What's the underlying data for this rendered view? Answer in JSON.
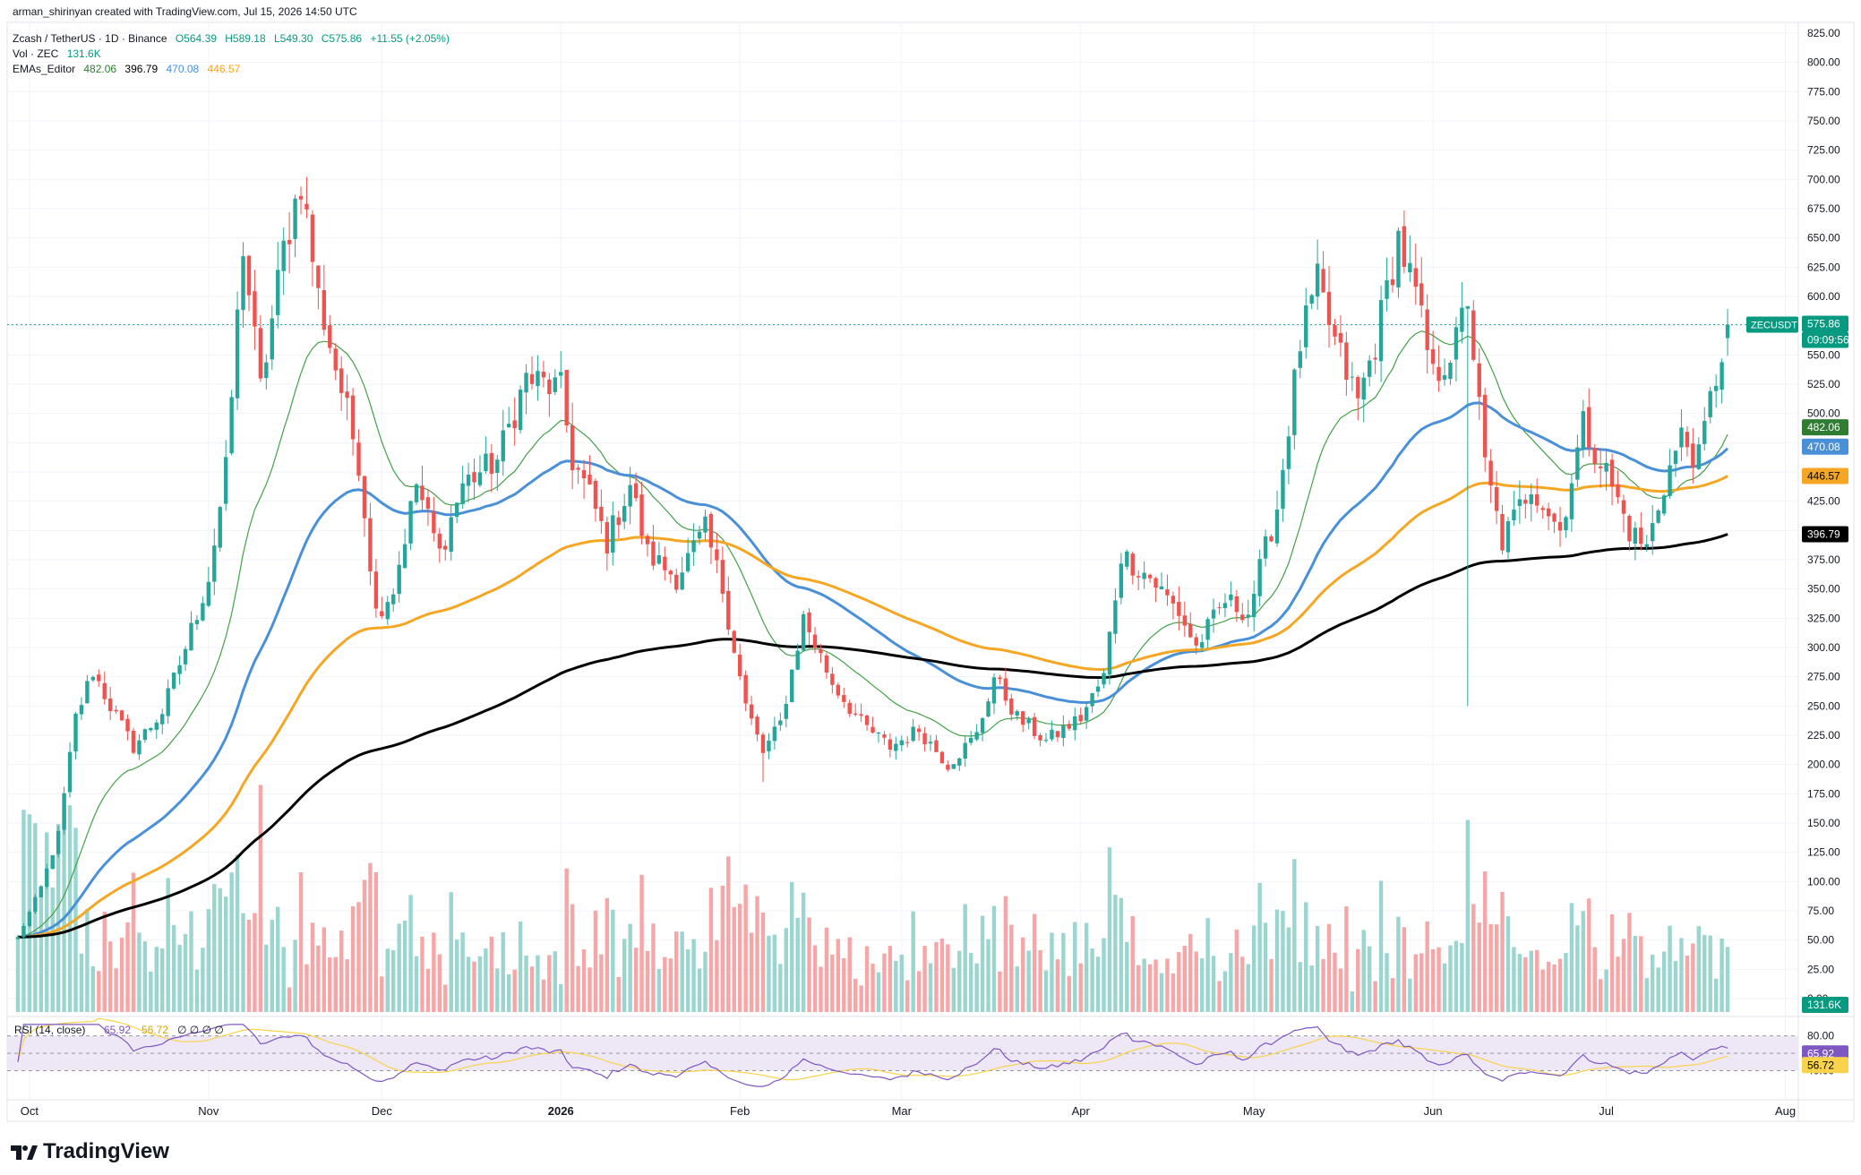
{
  "header": {
    "author_line": "arman_shirinyan created with TradingView.com, Jul 15, 2026 14:50 UTC",
    "symbol": "Zcash / TetherUS · 1D · Binance",
    "open": "O564.39",
    "high": "H589.18",
    "low": "L549.30",
    "close": "C575.86",
    "change": "+11.55 (+2.05%)",
    "vol_label": "Vol · ZEC",
    "vol_value": "131.6K",
    "ema_label": "EMAs_Editor",
    "ema_values": [
      "482.06",
      "396.79",
      "470.08",
      "446.57"
    ]
  },
  "brand": {
    "name": "TradingView"
  },
  "colors": {
    "up": "#26a69a",
    "down": "#ef5350",
    "vol_up": "#9ad5cf",
    "vol_down": "#f6a6a6",
    "ema20": "#43a047",
    "ema50": "#4a90d9",
    "ema100": "#f5a623",
    "ema200": "#000000",
    "rsi": "#7e57c2",
    "rsi_ma": "#f9d34c",
    "rsi_band": "#ede7f6"
  },
  "price_axis": {
    "ticks": [
      "825.00",
      "800.00",
      "775.00",
      "750.00",
      "725.00",
      "700.00",
      "675.00",
      "650.00",
      "625.00",
      "600.00",
      "575.00",
      "550.00",
      "525.00",
      "500.00",
      "475.00",
      "450.00",
      "425.00",
      "400.00",
      "375.00",
      "350.00",
      "325.00",
      "300.00",
      "275.00",
      "250.00",
      "225.00",
      "200.00",
      "175.00",
      "150.00",
      "125.00",
      "100.00",
      "75.00",
      "50.00",
      "25.00",
      "0.00"
    ],
    "labels": {
      "symbol": "ZECUSDT",
      "price": "575.86",
      "countdown": "09:09:56",
      "ema20": "482.06",
      "ema50": "470.08",
      "ema100": "446.57",
      "ema200": "396.79",
      "volume": "131.6K"
    }
  },
  "rsi_panel": {
    "label": "RSI (14, close)",
    "value": "65.92",
    "ma_value": "56.72",
    "extra": "∅ ∅ ∅ ∅",
    "ticks": [
      "80.00",
      "40.00"
    ]
  },
  "time_axis": [
    "Oct",
    "Nov",
    "Dec",
    "2026",
    "Feb",
    "Mar",
    "Apr",
    "May",
    "Jun",
    "Jul",
    "Aug"
  ],
  "chart_data": {
    "type": "candlestick",
    "title": "Zcash / TetherUS · 1D · Binance",
    "y_range": [
      0,
      825
    ],
    "x_range": [
      "2025-09-29",
      "2026-08-02"
    ],
    "anchors": [
      [
        "2025-09-29",
        52
      ],
      [
        "2025-10-03",
        95
      ],
      [
        "2025-10-06",
        140
      ],
      [
        "2025-10-09",
        240
      ],
      [
        "2025-10-12",
        280
      ],
      [
        "2025-10-15",
        250
      ],
      [
        "2025-10-19",
        215
      ],
      [
        "2025-10-24",
        245
      ],
      [
        "2025-10-28",
        300
      ],
      [
        "2025-11-01",
        360
      ],
      [
        "2025-11-04",
        450
      ],
      [
        "2025-11-07",
        645
      ],
      [
        "2025-11-10",
        520
      ],
      [
        "2025-11-14",
        640
      ],
      [
        "2025-11-17",
        700
      ],
      [
        "2025-11-20",
        600
      ],
      [
        "2025-11-24",
        520
      ],
      [
        "2025-11-27",
        460
      ],
      [
        "2025-11-30",
        330
      ],
      [
        "2025-12-03",
        350
      ],
      [
        "2025-12-07",
        440
      ],
      [
        "2025-12-11",
        380
      ],
      [
        "2025-12-15",
        440
      ],
      [
        "2025-12-21",
        460
      ],
      [
        "2025-12-26",
        530
      ],
      [
        "2026-01-01",
        520
      ],
      [
        "2026-01-03",
        460
      ],
      [
        "2026-01-06",
        430
      ],
      [
        "2026-01-09",
        390
      ],
      [
        "2026-01-13",
        440
      ],
      [
        "2026-01-16",
        380
      ],
      [
        "2026-01-21",
        360
      ],
      [
        "2026-01-26",
        400
      ],
      [
        "2026-01-29",
        350
      ],
      [
        "2026-02-02",
        250
      ],
      [
        "2026-02-05",
        210
      ],
      [
        "2026-02-08",
        235
      ],
      [
        "2026-02-12",
        325
      ],
      [
        "2026-02-17",
        270
      ],
      [
        "2026-02-22",
        235
      ],
      [
        "2026-02-27",
        215
      ],
      [
        "2026-03-04",
        230
      ],
      [
        "2026-03-09",
        200
      ],
      [
        "2026-03-14",
        225
      ],
      [
        "2026-03-17",
        275
      ],
      [
        "2026-03-21",
        240
      ],
      [
        "2026-03-26",
        220
      ],
      [
        "2026-04-01",
        240
      ],
      [
        "2026-04-05",
        275
      ],
      [
        "2026-04-08",
        380
      ],
      [
        "2026-04-13",
        360
      ],
      [
        "2026-04-18",
        330
      ],
      [
        "2026-04-21",
        300
      ],
      [
        "2026-04-26",
        340
      ],
      [
        "2026-04-30",
        330
      ],
      [
        "2026-05-05",
        420
      ],
      [
        "2026-05-09",
        560
      ],
      [
        "2026-05-12",
        610
      ],
      [
        "2026-05-15",
        560
      ],
      [
        "2026-05-19",
        510
      ],
      [
        "2026-05-22",
        560
      ],
      [
        "2026-05-26",
        650
      ],
      [
        "2026-05-29",
        600
      ],
      [
        "2026-06-01",
        530
      ],
      [
        "2026-06-05",
        560
      ],
      [
        "2026-06-07",
        600
      ],
      [
        "2026-06-10",
        455
      ],
      [
        "2026-06-13",
        390
      ],
      [
        "2026-06-18",
        440
      ],
      [
        "2026-06-23",
        400
      ],
      [
        "2026-06-27",
        490
      ],
      [
        "2026-07-01",
        450
      ],
      [
        "2026-07-05",
        400
      ],
      [
        "2026-07-08",
        385
      ],
      [
        "2026-07-11",
        440
      ],
      [
        "2026-07-14",
        480
      ],
      [
        "2026-07-17",
        460
      ],
      [
        "2026-07-19",
        510
      ],
      [
        "2026-07-22",
        575.86
      ]
    ],
    "big_candle_spikes": [
      [
        "2026-06-07",
        360,
        250
      ],
      [
        "2026-02-05",
        200,
        185
      ]
    ],
    "ema_series": [
      {
        "name": "EMA 20",
        "last": 482.06
      },
      {
        "name": "EMA 50",
        "last": 470.08
      },
      {
        "name": "EMA 100",
        "last": 446.57
      },
      {
        "name": "EMA 200",
        "last": 396.79
      }
    ],
    "volume_spikes": [
      [
        "2025-11-10",
        195
      ],
      [
        "2026-06-07",
        165
      ],
      [
        "2025-11-17",
        120
      ]
    ],
    "rsi": {
      "last": 65.92,
      "ma_last": 56.72,
      "range": [
        0,
        100
      ],
      "bands": [
        40,
        80
      ]
    }
  }
}
